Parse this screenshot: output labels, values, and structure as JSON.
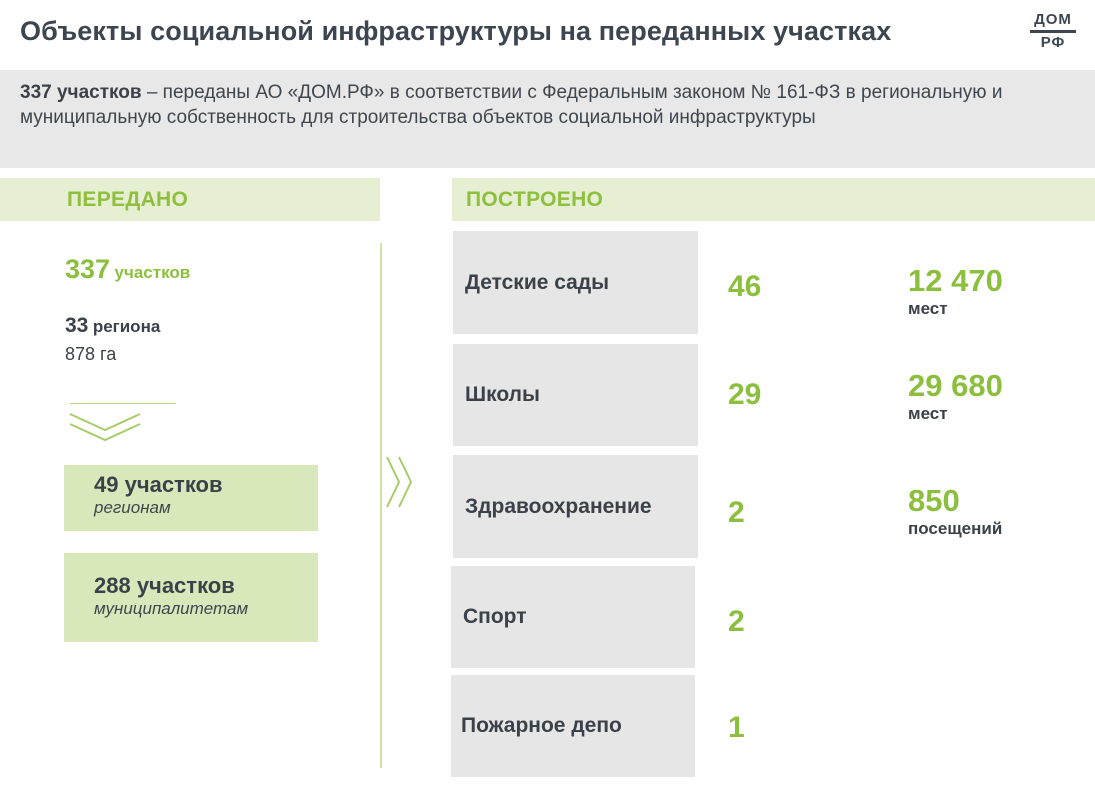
{
  "title": "Объекты социальной инфраструктуры на переданных участках",
  "logo": {
    "line1": "ДОМ",
    "line2": "РФ"
  },
  "intro": {
    "bold": "337 участков",
    "text": " – переданы АО «ДОМ.РФ» в соответствии с Федеральным законом № 161-ФЗ в региональную и муниципальную собственность для строительства объектов социальной инфраструктуры"
  },
  "transferred": {
    "header": "ПЕРЕДАНО",
    "plots": {
      "number": "337",
      "unit": "участков"
    },
    "regions": {
      "number": "33",
      "unit": "региона"
    },
    "area": "878 га",
    "boxes": [
      {
        "count": "49 участков",
        "recipient": "регионам"
      },
      {
        "count": "288 участков",
        "recipient": "муниципалитетам"
      }
    ]
  },
  "built": {
    "header": "ПОСТРОЕНО",
    "items": [
      {
        "name": "Детские сады",
        "count": "46",
        "capacity": "12 470",
        "unit": "мест"
      },
      {
        "name": "Школы",
        "count": "29",
        "capacity": "29 680",
        "unit": "мест"
      },
      {
        "name": "Здравоохранение",
        "count": "2",
        "capacity": "850",
        "unit": "посещений"
      },
      {
        "name": "Спорт",
        "count": "2"
      },
      {
        "name": "Пожарное депо",
        "count": "1"
      }
    ]
  },
  "colors": {
    "accent_green": "#8cbf3d",
    "header_bg": "#e6efd2",
    "box_green": "#d8e8bb",
    "grey_panel": "#e6e6e6",
    "text_dark": "#3b4148"
  }
}
